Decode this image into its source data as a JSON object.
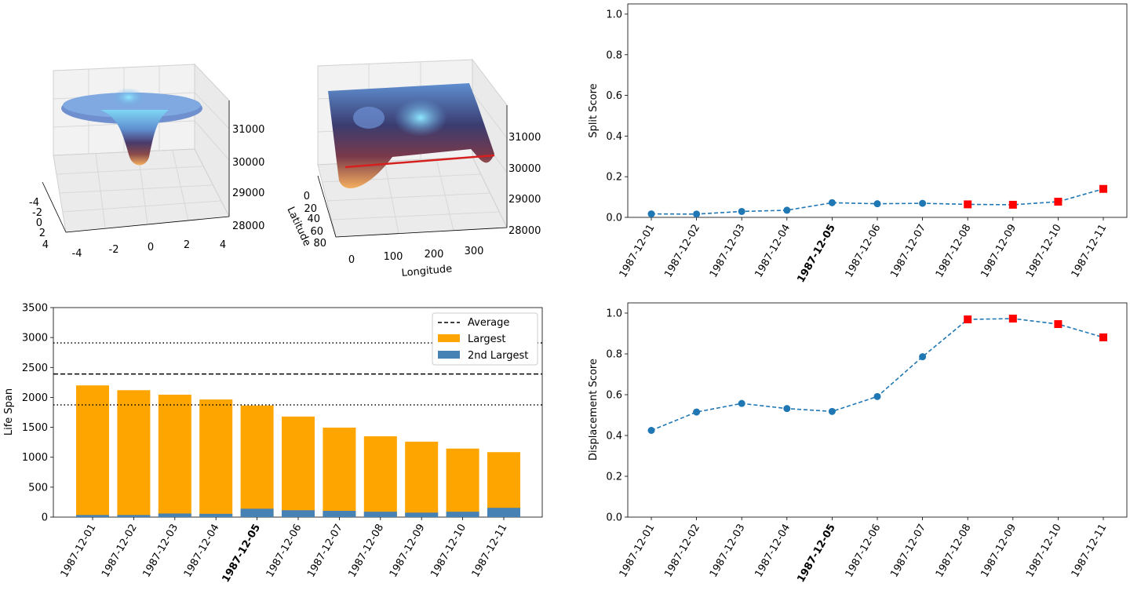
{
  "figure": {
    "dates": [
      "1987-12-01",
      "1987-12-02",
      "1987-12-03",
      "1987-12-04",
      "1987-12-05",
      "1987-12-06",
      "1987-12-07",
      "1987-12-08",
      "1987-12-09",
      "1987-12-10",
      "1987-12-11"
    ],
    "highlight_date": "1987-12-05"
  },
  "chart_data": [
    {
      "id": "surface-left",
      "type": "surface3d",
      "x_ticks": [
        "-4",
        "-2",
        "0",
        "2",
        "4"
      ],
      "y_ticks": [
        "-4",
        "-2",
        "0",
        "2",
        "4"
      ],
      "z_ticks": [
        "28000",
        "29000",
        "30000",
        "31000"
      ],
      "zlim": [
        28000,
        31500
      ],
      "colormap": [
        "#5a2a40",
        "#2e3c7a",
        "#5f8fd0",
        "#7fd6f5",
        "#f5b060"
      ]
    },
    {
      "id": "surface-right",
      "type": "surface3d",
      "xlabel": "Longitude",
      "ylabel": "Latitude",
      "x_ticks": [
        "0",
        "100",
        "200",
        "300"
      ],
      "y_ticks": [
        "0",
        "20",
        "40",
        "60",
        "80"
      ],
      "z_ticks": [
        "28000",
        "29000",
        "30000",
        "31000"
      ],
      "zlim": [
        28000,
        31500
      ],
      "track_color": "#d62020"
    },
    {
      "id": "split-score",
      "type": "line",
      "ylabel": "Split Score",
      "ylim": [
        0,
        1.05
      ],
      "yticks": [
        "0.0",
        "0.2",
        "0.4",
        "0.6",
        "0.8",
        "1.0"
      ],
      "values": [
        0.017,
        0.016,
        0.029,
        0.035,
        0.072,
        0.067,
        0.069,
        0.064,
        0.062,
        0.077,
        0.14
      ],
      "red_marker_indices": [
        7,
        8,
        9,
        10
      ],
      "line_color": "#1f77b4",
      "marker_color": "#ff0000"
    },
    {
      "id": "life-span",
      "type": "bar",
      "ylabel": "Life Span",
      "ylim": [
        0,
        3500
      ],
      "yticks": [
        "0",
        "500",
        "1000",
        "1500",
        "2000",
        "2500",
        "3000",
        "3500"
      ],
      "series": [
        {
          "name": "Largest",
          "values": [
            2200,
            2120,
            2045,
            1965,
            1865,
            1680,
            1495,
            1350,
            1260,
            1145,
            1085
          ],
          "color": "#ffa500"
        },
        {
          "name": "2nd Largest",
          "values": [
            35,
            35,
            60,
            55,
            140,
            115,
            105,
            90,
            75,
            90,
            155
          ],
          "color": "#4682b4"
        }
      ],
      "average": 2390,
      "dotted_lines": [
        2910,
        1875
      ],
      "legend": [
        "Average",
        "Largest",
        "2nd Largest"
      ]
    },
    {
      "id": "displacement-score",
      "type": "line",
      "ylabel": "Displacement Score",
      "ylim": [
        0,
        1.05
      ],
      "yticks": [
        "0.0",
        "0.2",
        "0.4",
        "0.6",
        "0.8",
        "1.0"
      ],
      "values": [
        0.425,
        0.515,
        0.557,
        0.532,
        0.518,
        0.591,
        0.786,
        0.969,
        0.973,
        0.946,
        0.881
      ],
      "red_marker_indices": [
        7,
        8,
        9,
        10
      ],
      "line_color": "#1f77b4",
      "marker_color": "#ff0000"
    }
  ]
}
